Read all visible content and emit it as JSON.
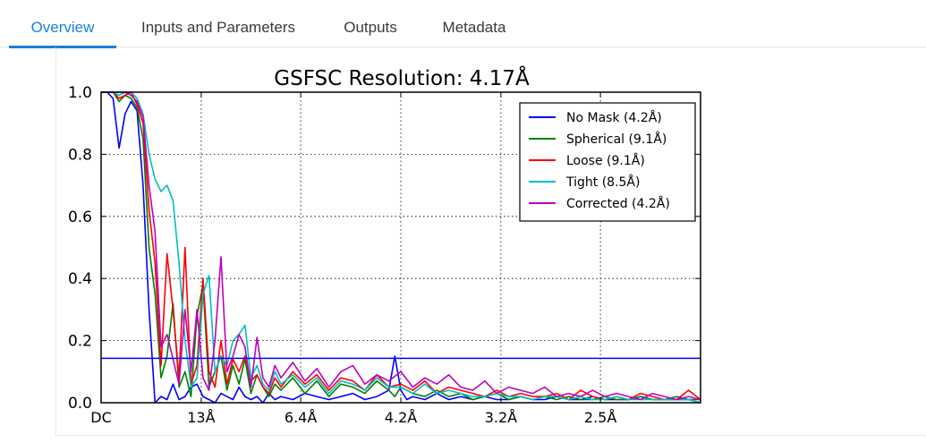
{
  "tabs": [
    {
      "label": "Overview",
      "active": true
    },
    {
      "label": "Inputs and Parameters",
      "active": false
    },
    {
      "label": "Outputs",
      "active": false
    },
    {
      "label": "Metadata",
      "active": false
    }
  ],
  "colors": {
    "accent": "#1b7fd6"
  },
  "chart_data": {
    "type": "line",
    "title": "GSFSC Resolution: 4.17Å",
    "xlabel": "",
    "ylabel": "",
    "x_unit": "frequency index (0 = DC)",
    "xlim": [
      0,
      100
    ],
    "ylim": [
      0,
      1.0
    ],
    "yticks": [
      0.0,
      0.2,
      0.4,
      0.6,
      0.8,
      1.0
    ],
    "yticklabels": [
      "0.0",
      "0.2",
      "0.4",
      "0.6",
      "0.8",
      "1.0"
    ],
    "xticks": [
      0,
      16.7,
      33.3,
      50,
      66.7,
      83.3
    ],
    "xticklabels": [
      "DC",
      "13Å",
      "6.4Å",
      "4.2Å",
      "3.2Å",
      "2.5Å"
    ],
    "grid": true,
    "legend_position": "top-right",
    "threshold": {
      "value": 0.143,
      "color": "#0000ff"
    },
    "series": [
      {
        "name": "No Mask (4.2Å)",
        "color": "#0000ff",
        "x": [
          0,
          1,
          2,
          3,
          4,
          5,
          6,
          7,
          8,
          9,
          10,
          11,
          12,
          13,
          14,
          15,
          16,
          17,
          18,
          19,
          20,
          21,
          22,
          23,
          24,
          25,
          26,
          27,
          28,
          29,
          30,
          32,
          34,
          36,
          38,
          40,
          42,
          44,
          46,
          48,
          49,
          50,
          51,
          52,
          54,
          56,
          58,
          60,
          62,
          64,
          66,
          68,
          70,
          72,
          74,
          76,
          78,
          80,
          82,
          84,
          86,
          88,
          90,
          92,
          94,
          96,
          98,
          100
        ],
        "y": [
          1.0,
          1.0,
          0.98,
          0.82,
          0.93,
          0.97,
          0.94,
          0.7,
          0.3,
          0.0,
          0.02,
          0.01,
          0.06,
          0.01,
          0.02,
          0.05,
          0.06,
          0.02,
          0.01,
          0.0,
          0.03,
          0.02,
          0.01,
          0.05,
          0.02,
          0.01,
          0.02,
          0.0,
          0.03,
          0.01,
          0.02,
          0.01,
          0.03,
          0.02,
          0.01,
          0.02,
          0.03,
          0.01,
          0.02,
          0.04,
          0.15,
          0.04,
          0.01,
          0.02,
          0.01,
          0.03,
          0.01,
          0.02,
          0.01,
          0.02,
          0.01,
          0.01,
          0.02,
          0.01,
          0.01,
          0.02,
          0.01,
          0.01,
          0.02,
          0.01,
          0.01,
          0.01,
          0.02,
          0.01,
          0.01,
          0.01,
          0.01,
          0.0
        ]
      },
      {
        "name": "Spherical (9.1Å)",
        "color": "#008000",
        "x": [
          0,
          1,
          2,
          3,
          4,
          5,
          6,
          7,
          8,
          9,
          10,
          11,
          12,
          13,
          14,
          15,
          16,
          17,
          18,
          19,
          20,
          21,
          22,
          23,
          24,
          25,
          26,
          27,
          28,
          29,
          30,
          32,
          34,
          36,
          38,
          40,
          42,
          44,
          46,
          48,
          49,
          50,
          52,
          54,
          56,
          58,
          60,
          62,
          64,
          66,
          68,
          70,
          72,
          74,
          76,
          78,
          80,
          82,
          84,
          86,
          88,
          90,
          92,
          94,
          96,
          98,
          100
        ],
        "y": [
          1.0,
          1.0,
          1.0,
          0.97,
          0.99,
          0.98,
          0.95,
          0.85,
          0.5,
          0.35,
          0.08,
          0.15,
          0.32,
          0.05,
          0.1,
          0.02,
          0.28,
          0.38,
          0.05,
          0.1,
          0.15,
          0.04,
          0.12,
          0.06,
          0.14,
          0.03,
          0.09,
          0.05,
          0.02,
          0.06,
          0.04,
          0.08,
          0.03,
          0.07,
          0.02,
          0.06,
          0.05,
          0.03,
          0.07,
          0.04,
          0.02,
          0.05,
          0.03,
          0.02,
          0.04,
          0.02,
          0.03,
          0.01,
          0.02,
          0.03,
          0.01,
          0.02,
          0.01,
          0.02,
          0.01,
          0.02,
          0.01,
          0.01,
          0.02,
          0.01,
          0.01,
          0.02,
          0.01,
          0.01,
          0.02,
          0.01,
          0.01
        ]
      },
      {
        "name": "Loose (9.1Å)",
        "color": "#ff0000",
        "x": [
          0,
          1,
          2,
          3,
          4,
          5,
          6,
          7,
          8,
          9,
          10,
          11,
          12,
          13,
          14,
          15,
          16,
          17,
          18,
          19,
          20,
          21,
          22,
          23,
          24,
          25,
          26,
          27,
          28,
          29,
          30,
          32,
          34,
          36,
          38,
          40,
          42,
          44,
          46,
          48,
          50,
          52,
          54,
          56,
          58,
          60,
          62,
          64,
          66,
          68,
          70,
          72,
          74,
          76,
          78,
          80,
          82,
          84,
          86,
          88,
          90,
          92,
          94,
          96,
          98,
          100
        ],
        "y": [
          1.0,
          1.0,
          1.0,
          0.98,
          0.99,
          1.0,
          0.96,
          0.9,
          0.62,
          0.45,
          0.12,
          0.48,
          0.3,
          0.08,
          0.5,
          0.06,
          0.12,
          0.4,
          0.1,
          0.05,
          0.2,
          0.06,
          0.14,
          0.1,
          0.15,
          0.07,
          0.09,
          0.05,
          0.03,
          0.08,
          0.05,
          0.1,
          0.06,
          0.09,
          0.04,
          0.08,
          0.07,
          0.04,
          0.09,
          0.05,
          0.06,
          0.04,
          0.07,
          0.03,
          0.05,
          0.04,
          0.03,
          0.02,
          0.04,
          0.02,
          0.03,
          0.02,
          0.02,
          0.03,
          0.01,
          0.04,
          0.02,
          0.01,
          0.02,
          0.01,
          0.03,
          0.02,
          0.01,
          0.01,
          0.04,
          0.01
        ]
      },
      {
        "name": "Tight (8.5Å)",
        "color": "#00bfbf",
        "x": [
          0,
          1,
          2,
          3,
          4,
          5,
          6,
          7,
          8,
          9,
          10,
          11,
          12,
          13,
          14,
          15,
          16,
          17,
          18,
          19,
          20,
          21,
          22,
          23,
          24,
          25,
          26,
          27,
          28,
          29,
          30,
          32,
          34,
          36,
          38,
          40,
          42,
          44,
          46,
          48,
          50,
          52,
          54,
          56,
          58,
          60,
          62,
          64,
          66,
          68,
          70,
          72,
          74,
          76,
          78,
          80,
          82,
          84,
          86,
          88,
          90,
          92,
          94,
          96,
          98,
          100
        ],
        "y": [
          1.0,
          1.0,
          1.0,
          0.99,
          1.0,
          1.0,
          0.98,
          0.93,
          0.8,
          0.72,
          0.68,
          0.7,
          0.65,
          0.45,
          0.2,
          0.05,
          0.08,
          0.35,
          0.41,
          0.1,
          0.15,
          0.12,
          0.2,
          0.22,
          0.25,
          0.08,
          0.12,
          0.06,
          0.04,
          0.1,
          0.06,
          0.09,
          0.05,
          0.08,
          0.03,
          0.07,
          0.06,
          0.04,
          0.08,
          0.05,
          0.05,
          0.03,
          0.06,
          0.03,
          0.04,
          0.03,
          0.02,
          0.02,
          0.03,
          0.02,
          0.02,
          0.01,
          0.02,
          0.02,
          0.01,
          0.02,
          0.01,
          0.01,
          0.02,
          0.01,
          0.01,
          0.01,
          0.01,
          0.01,
          0.01,
          0.0
        ]
      },
      {
        "name": "Corrected (4.2Å)",
        "color": "#bf00bf",
        "x": [
          0,
          1,
          2,
          3,
          4,
          5,
          6,
          7,
          8,
          9,
          10,
          11,
          12,
          13,
          14,
          15,
          16,
          17,
          18,
          19,
          20,
          21,
          22,
          23,
          24,
          25,
          26,
          27,
          28,
          29,
          30,
          32,
          34,
          36,
          38,
          40,
          42,
          44,
          46,
          48,
          50,
          52,
          54,
          56,
          58,
          60,
          62,
          64,
          66,
          68,
          70,
          72,
          74,
          76,
          78,
          80,
          82,
          84,
          86,
          88,
          90,
          92,
          94,
          96,
          98,
          100
        ],
        "y": [
          1.0,
          1.0,
          1.0,
          1.0,
          1.0,
          0.99,
          0.97,
          0.92,
          0.7,
          0.55,
          0.18,
          0.22,
          0.14,
          0.06,
          0.3,
          0.1,
          0.3,
          0.08,
          0.04,
          0.2,
          0.47,
          0.1,
          0.15,
          0.22,
          0.18,
          0.05,
          0.21,
          0.08,
          0.05,
          0.12,
          0.08,
          0.13,
          0.07,
          0.11,
          0.05,
          0.1,
          0.12,
          0.06,
          0.09,
          0.07,
          0.1,
          0.05,
          0.08,
          0.06,
          0.09,
          0.05,
          0.04,
          0.07,
          0.03,
          0.05,
          0.04,
          0.03,
          0.05,
          0.02,
          0.03,
          0.02,
          0.04,
          0.02,
          0.03,
          0.02,
          0.01,
          0.03,
          0.02,
          0.01,
          0.02,
          0.01
        ]
      }
    ]
  }
}
